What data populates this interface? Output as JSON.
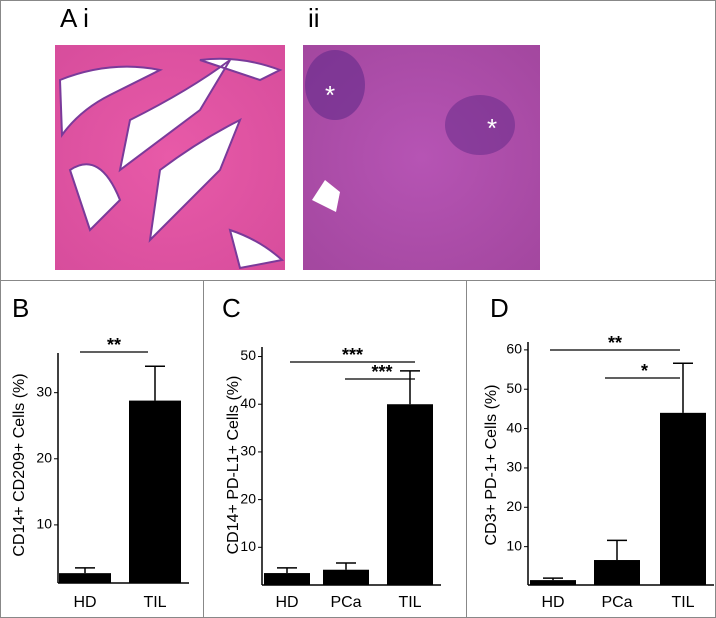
{
  "figure": {
    "label_a": "A i",
    "label_a2": "ii",
    "asterisks": [
      "*",
      "*"
    ]
  },
  "chart_data": [
    {
      "type": "bar",
      "panel_label": "B",
      "y_label": "CD14+ CD209+ Cells (%)",
      "categories": [
        "HD",
        "TIL"
      ],
      "values": [
        2.7,
        28.8
      ],
      "errors": [
        0.8,
        5.2
      ],
      "color": "#000000",
      "ylim": [
        0,
        36
      ],
      "yticks": [
        10,
        20,
        30
      ],
      "annotations": [
        "**"
      ]
    },
    {
      "type": "bar",
      "panel_label": "C",
      "y_label": "CD14+ PD-L1+ Cells (%)",
      "categories": [
        "HD",
        "PCa",
        "TIL"
      ],
      "values": [
        4.6,
        5.3,
        40
      ],
      "errors": [
        1.1,
        1.4,
        7
      ],
      "color": "#000000",
      "ylim": [
        0,
        52
      ],
      "yticks": [
        10,
        20,
        30,
        40,
        50
      ],
      "annotations": [
        "***",
        "***"
      ]
    },
    {
      "type": "bar",
      "panel_label": "D",
      "y_label": "CD3+ PD-1+ Cells (%)",
      "categories": [
        "HD",
        "PCa",
        "TIL"
      ],
      "values": [
        1.5,
        6.6,
        44
      ],
      "errors": [
        0.5,
        5,
        12.6
      ],
      "color": "#000000",
      "ylim": [
        0,
        62
      ],
      "yticks": [
        10,
        20,
        30,
        40,
        50,
        60
      ],
      "annotations": [
        "**",
        "*"
      ]
    }
  ]
}
